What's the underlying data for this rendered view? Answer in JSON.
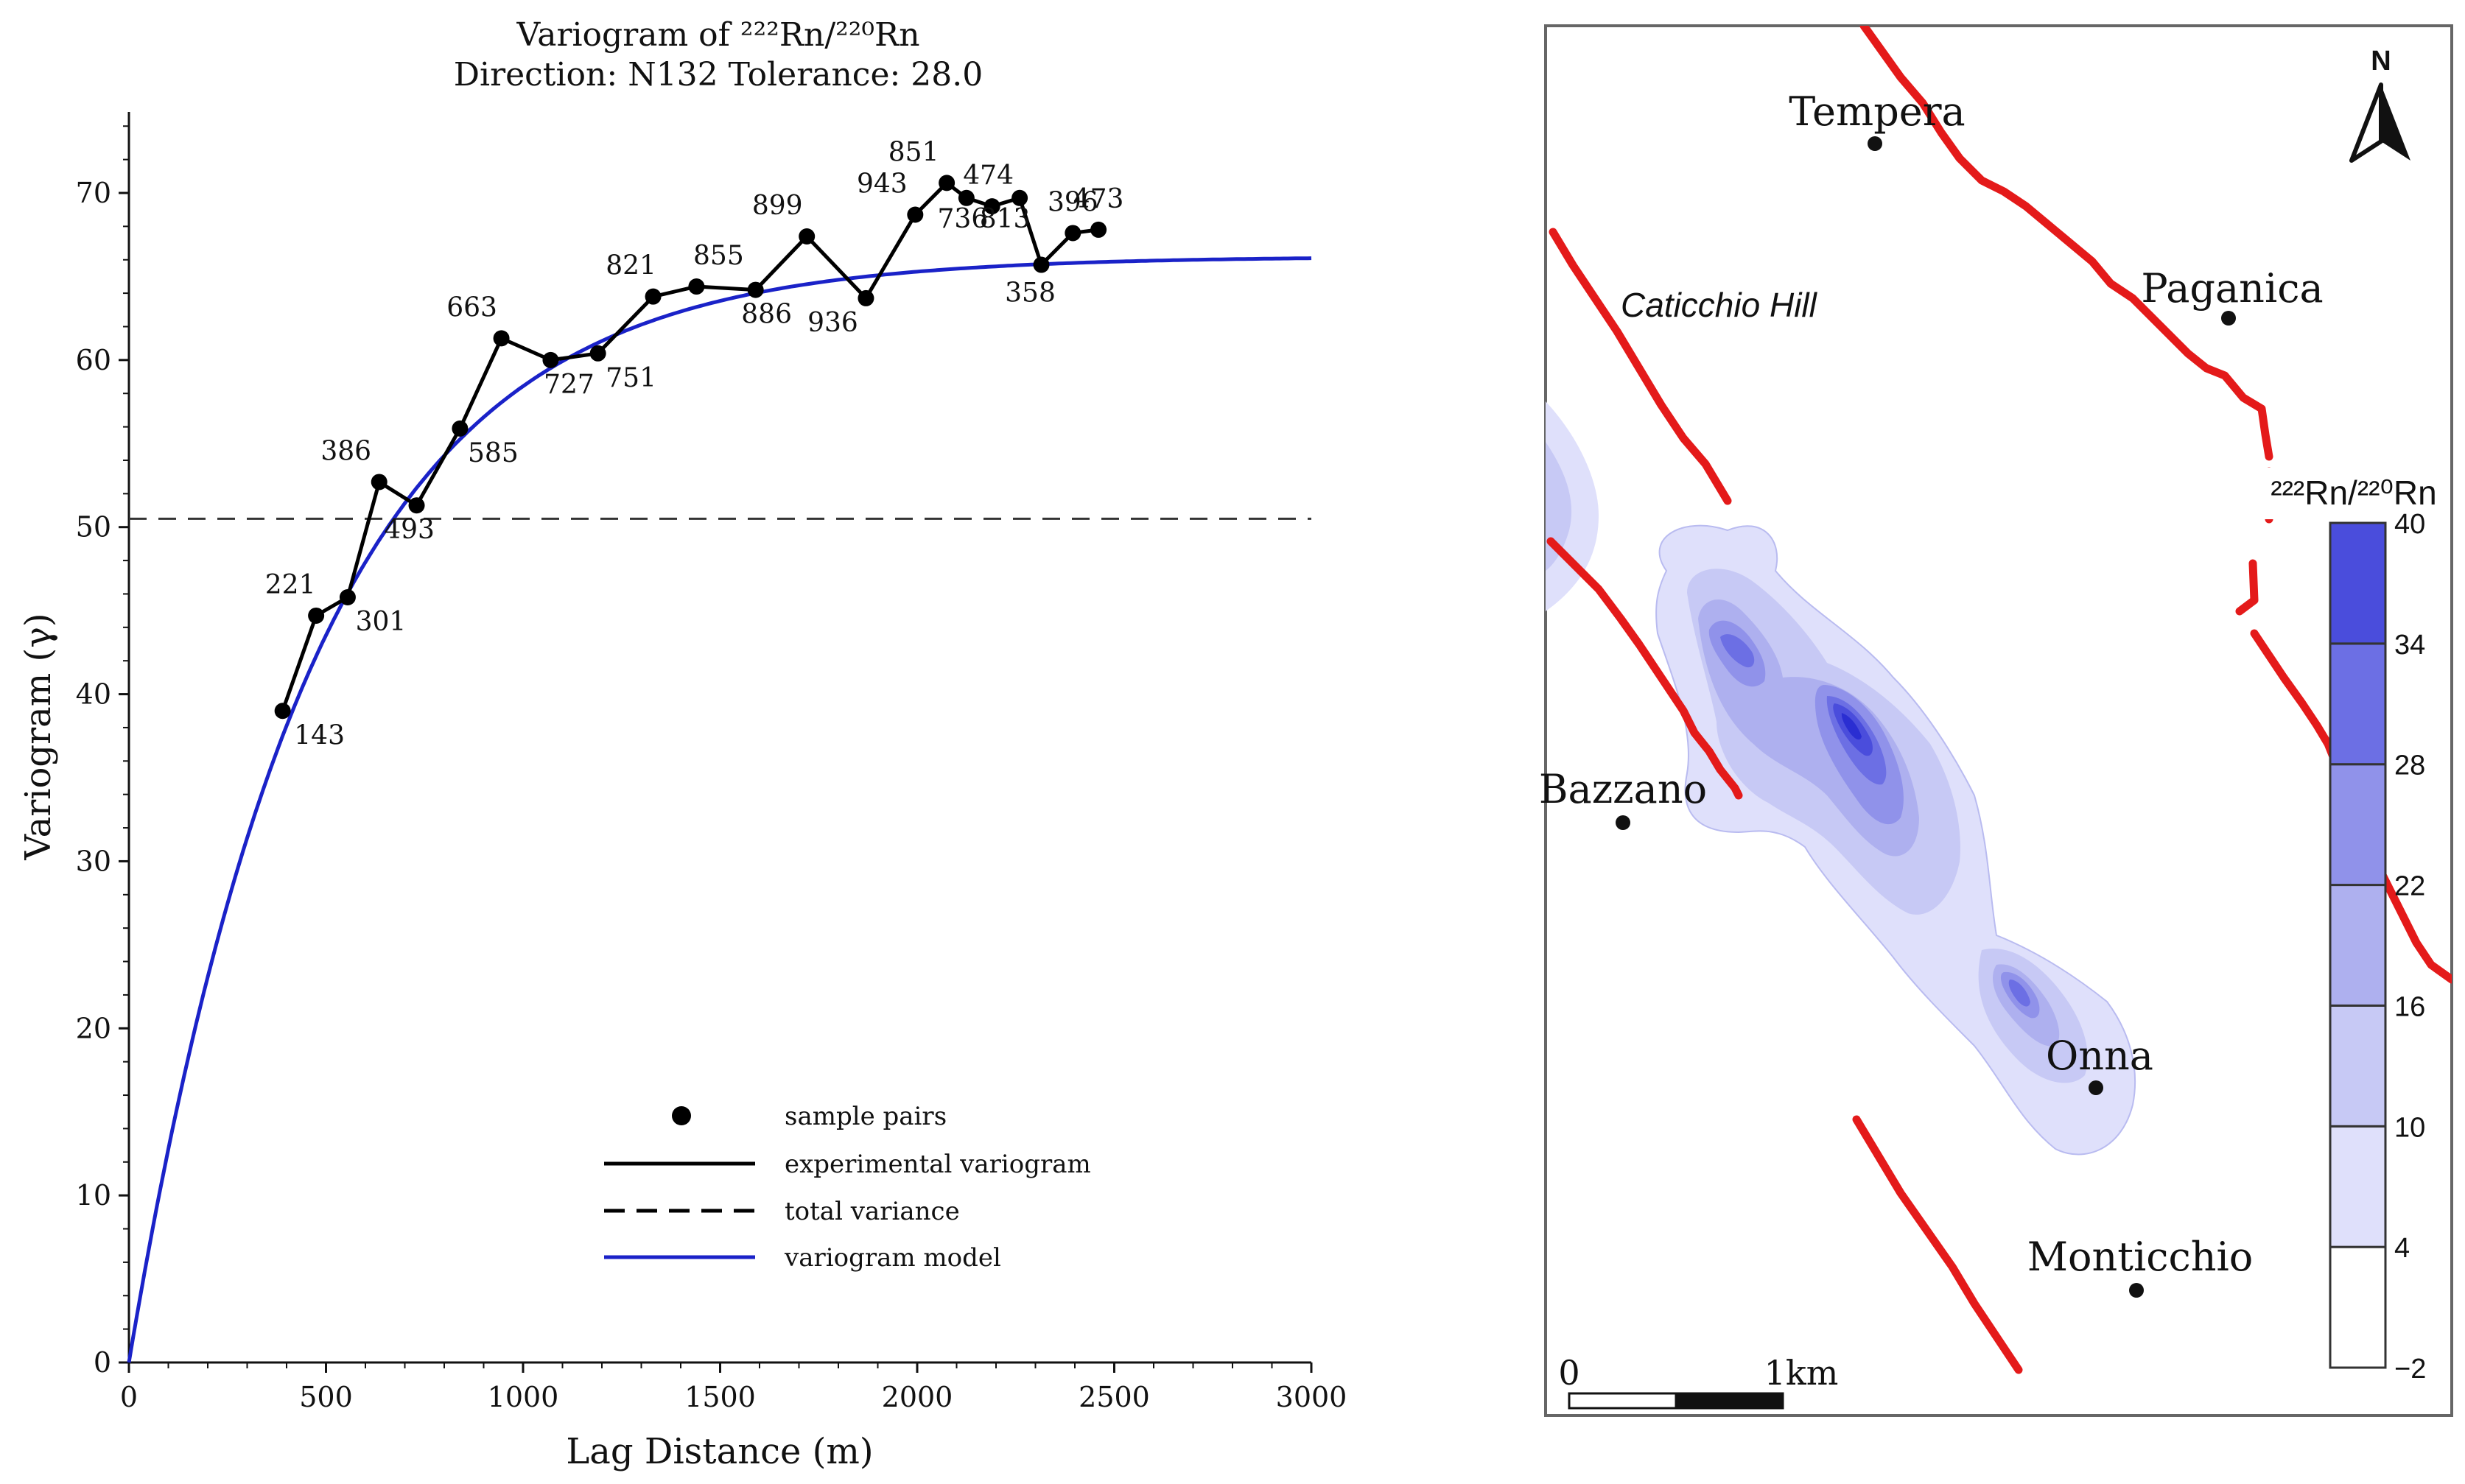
{
  "chart_data": [
    {
      "type": "line",
      "title": "Variogram of ²²²Rn/²²⁰Rn",
      "subtitle": "Direction: N132 Tolerance: 28.0",
      "xlabel": "Lag Distance (m)",
      "ylabel": "Variogram (γ)",
      "xlim": [
        0,
        3000
      ],
      "ylim": [
        0,
        75
      ],
      "xticks": [
        0,
        500,
        1000,
        1500,
        2000,
        2500,
        3000
      ],
      "yticks": [
        0,
        10,
        20,
        30,
        40,
        50,
        60,
        70
      ],
      "grid": false,
      "legend_position": "bottom-right",
      "legend": [
        "sample pairs",
        "experimental variogram",
        "total variance",
        "variogram model"
      ],
      "total_variance": 50.5,
      "model": {
        "type": "exponential",
        "nugget": 0,
        "sill": 66.2,
        "practical_range": 1400
      },
      "x": [
        390,
        475,
        555,
        635,
        730,
        840,
        945,
        1070,
        1190,
        1330,
        1440,
        1590,
        1720,
        1870,
        1995,
        2075,
        2125,
        2190,
        2260,
        2315,
        2395,
        2460
      ],
      "y": [
        39.0,
        44.7,
        45.8,
        52.7,
        51.3,
        55.9,
        61.3,
        60.0,
        60.4,
        63.8,
        64.4,
        64.2,
        67.4,
        63.7,
        68.7,
        70.6,
        69.7,
        69.2,
        69.7,
        65.7,
        67.6,
        67.8
      ],
      "point_labels": [
        "143",
        "221",
        "301",
        "386",
        "493",
        "585",
        "663",
        "727",
        "751",
        "821",
        "855",
        "886",
        "899",
        "936",
        "943",
        "851",
        "736",
        "474",
        "813",
        "358",
        "396",
        "473"
      ]
    },
    {
      "type": "heatmap",
      "title": "²²²Rn/²²⁰Rn",
      "colorbar_ticks": [
        -2,
        4,
        10,
        16,
        22,
        28,
        34,
        40
      ],
      "colorbar_colors": [
        "#ffffff",
        "#dfe0fb",
        "#c7c9f5",
        "#aeb0ef",
        "#9092ea",
        "#6c6fe4",
        "#4a4ddc",
        "#2a2ed2"
      ],
      "north_label": "N",
      "scale_bar": [
        "0",
        "1km"
      ],
      "places": [
        "Tempera",
        "Paganica",
        "Caticchio Hill",
        "Bazzano",
        "Onna",
        "Monticchio"
      ]
    }
  ]
}
